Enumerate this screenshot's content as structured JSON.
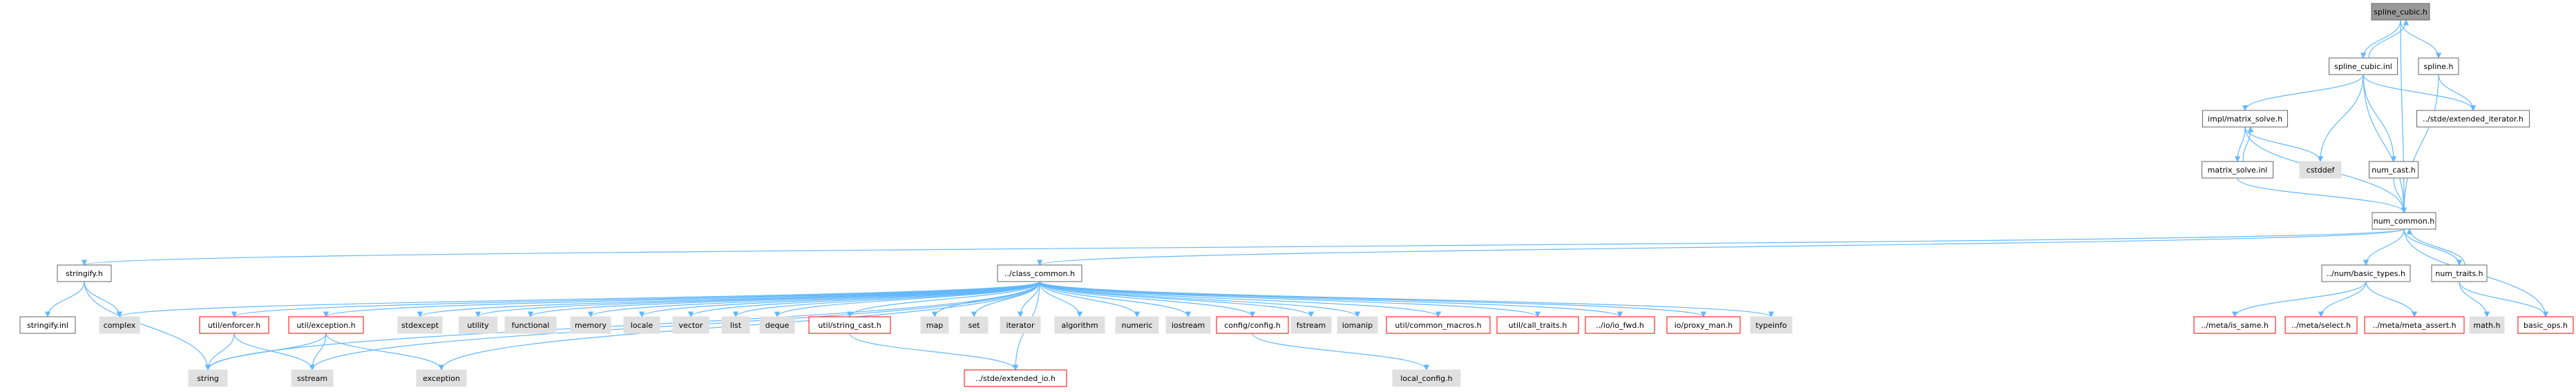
{
  "diagram": {
    "type": "include-dependency-graph",
    "colors": {
      "edge": "#63B8FF",
      "node_border": "#666666",
      "missing_border": "#FF0000",
      "external_fill": "#E0E0E0",
      "root_fill": "#999999",
      "node_fill": "#FFFFFF"
    },
    "nodes": [
      {
        "id": "spline_cubic_h",
        "label": "spline_cubic.h",
        "kind": "root"
      },
      {
        "id": "spline_cubic_inl",
        "label": "spline_cubic.inl",
        "kind": "normal"
      },
      {
        "id": "spline_h",
        "label": "spline.h",
        "kind": "normal"
      },
      {
        "id": "impl_matrix_solve_h",
        "label": "impl/matrix_solve.h",
        "kind": "normal"
      },
      {
        "id": "stde_extended_iterator_h",
        "label": "../stde/extended_iterator.h",
        "kind": "normal"
      },
      {
        "id": "cstddef",
        "label": "cstddef",
        "kind": "external"
      },
      {
        "id": "num_cast_h",
        "label": "num_cast.h",
        "kind": "normal"
      },
      {
        "id": "matrix_solve_inl",
        "label": "matrix_solve.inl",
        "kind": "normal"
      },
      {
        "id": "num_common_h",
        "label": "num_common.h",
        "kind": "normal"
      },
      {
        "id": "stringify_h",
        "label": "stringify.h",
        "kind": "normal"
      },
      {
        "id": "class_common_h",
        "label": "../class_common.h",
        "kind": "normal"
      },
      {
        "id": "num_basic_types_h",
        "label": "../num/basic_types.h",
        "kind": "normal"
      },
      {
        "id": "num_traits_h",
        "label": "num_traits.h",
        "kind": "normal"
      },
      {
        "id": "stringify_inl",
        "label": "stringify.inl",
        "kind": "normal"
      },
      {
        "id": "complex",
        "label": "complex",
        "kind": "external"
      },
      {
        "id": "util_enforcer_h",
        "label": "util/enforcer.h",
        "kind": "missing"
      },
      {
        "id": "util_exception_h",
        "label": "util/exception.h",
        "kind": "missing"
      },
      {
        "id": "stdexcept",
        "label": "stdexcept",
        "kind": "external"
      },
      {
        "id": "utility",
        "label": "utility",
        "kind": "external"
      },
      {
        "id": "functional",
        "label": "functional",
        "kind": "external"
      },
      {
        "id": "memory",
        "label": "memory",
        "kind": "external"
      },
      {
        "id": "locale",
        "label": "locale",
        "kind": "external"
      },
      {
        "id": "vector",
        "label": "vector",
        "kind": "external"
      },
      {
        "id": "list",
        "label": "list",
        "kind": "external"
      },
      {
        "id": "deque",
        "label": "deque",
        "kind": "external"
      },
      {
        "id": "util_string_cast_h",
        "label": "util/string_cast.h",
        "kind": "missing"
      },
      {
        "id": "map",
        "label": "map",
        "kind": "external"
      },
      {
        "id": "set",
        "label": "set",
        "kind": "external"
      },
      {
        "id": "iterator",
        "label": "iterator",
        "kind": "external"
      },
      {
        "id": "algorithm",
        "label": "algorithm",
        "kind": "external"
      },
      {
        "id": "numeric",
        "label": "numeric",
        "kind": "external"
      },
      {
        "id": "iostream",
        "label": "iostream",
        "kind": "external"
      },
      {
        "id": "config_config_h",
        "label": "config/config.h",
        "kind": "missing"
      },
      {
        "id": "fstream",
        "label": "fstream",
        "kind": "external"
      },
      {
        "id": "iomanip",
        "label": "iomanip",
        "kind": "external"
      },
      {
        "id": "util_common_macros_h",
        "label": "util/common_macros.h",
        "kind": "missing"
      },
      {
        "id": "util_call_traits_h",
        "label": "util/call_traits.h",
        "kind": "missing"
      },
      {
        "id": "io_io_fwd_h",
        "label": "../io/io_fwd.h",
        "kind": "missing"
      },
      {
        "id": "io_proxy_man_h",
        "label": "io/proxy_man.h",
        "kind": "missing"
      },
      {
        "id": "typeinfo",
        "label": "typeinfo",
        "kind": "external"
      },
      {
        "id": "meta_is_same_h",
        "label": "../meta/is_same.h",
        "kind": "missing"
      },
      {
        "id": "meta_select_h",
        "label": "../meta/select.h",
        "kind": "missing"
      },
      {
        "id": "meta_meta_assert_h",
        "label": "../meta/meta_assert.h",
        "kind": "missing"
      },
      {
        "id": "math_h",
        "label": "math.h",
        "kind": "external"
      },
      {
        "id": "basic_ops_h",
        "label": "basic_ops.h",
        "kind": "missing"
      },
      {
        "id": "string",
        "label": "string",
        "kind": "external"
      },
      {
        "id": "sstream",
        "label": "sstream",
        "kind": "external"
      },
      {
        "id": "exception",
        "label": "exception",
        "kind": "external"
      },
      {
        "id": "stde_extended_io_h",
        "label": "../stde/extended_io.h",
        "kind": "missing"
      },
      {
        "id": "local_config_h",
        "label": "local_config.h",
        "kind": "external"
      }
    ],
    "edges": [
      [
        "spline_cubic_h",
        "spline_cubic_inl"
      ],
      [
        "spline_cubic_inl",
        "spline_cubic_h"
      ],
      [
        "spline_cubic_h",
        "spline_h"
      ],
      [
        "spline_cubic_h",
        "num_common_h"
      ],
      [
        "spline_cubic_inl",
        "impl_matrix_solve_h"
      ],
      [
        "spline_cubic_inl",
        "stde_extended_iterator_h"
      ],
      [
        "spline_cubic_inl",
        "cstddef"
      ],
      [
        "spline_cubic_inl",
        "num_cast_h"
      ],
      [
        "spline_cubic_inl",
        "num_common_h"
      ],
      [
        "spline_h",
        "stde_extended_iterator_h"
      ],
      [
        "spline_h",
        "num_common_h"
      ],
      [
        "impl_matrix_solve_h",
        "matrix_solve_inl"
      ],
      [
        "matrix_solve_inl",
        "impl_matrix_solve_h"
      ],
      [
        "impl_matrix_solve_h",
        "cstddef"
      ],
      [
        "impl_matrix_solve_h",
        "num_common_h"
      ],
      [
        "matrix_solve_inl",
        "num_common_h"
      ],
      [
        "num_cast_h",
        "num_common_h"
      ],
      [
        "num_common_h",
        "stringify_h"
      ],
      [
        "num_common_h",
        "class_common_h"
      ],
      [
        "num_common_h",
        "num_basic_types_h"
      ],
      [
        "num_common_h",
        "num_traits_h"
      ],
      [
        "num_common_h",
        "basic_ops_h"
      ],
      [
        "num_traits_h",
        "num_common_h"
      ],
      [
        "stringify_h",
        "stringify_inl"
      ],
      [
        "stringify_h",
        "complex"
      ],
      [
        "stringify_h",
        "string"
      ],
      [
        "class_common_h",
        "complex"
      ],
      [
        "class_common_h",
        "util_enforcer_h"
      ],
      [
        "class_common_h",
        "util_exception_h"
      ],
      [
        "class_common_h",
        "stdexcept"
      ],
      [
        "class_common_h",
        "utility"
      ],
      [
        "class_common_h",
        "functional"
      ],
      [
        "class_common_h",
        "memory"
      ],
      [
        "class_common_h",
        "locale"
      ],
      [
        "class_common_h",
        "vector"
      ],
      [
        "class_common_h",
        "list"
      ],
      [
        "class_common_h",
        "deque"
      ],
      [
        "class_common_h",
        "util_string_cast_h"
      ],
      [
        "class_common_h",
        "map"
      ],
      [
        "class_common_h",
        "set"
      ],
      [
        "class_common_h",
        "iterator"
      ],
      [
        "class_common_h",
        "algorithm"
      ],
      [
        "class_common_h",
        "numeric"
      ],
      [
        "class_common_h",
        "iostream"
      ],
      [
        "class_common_h",
        "config_config_h"
      ],
      [
        "class_common_h",
        "fstream"
      ],
      [
        "class_common_h",
        "iomanip"
      ],
      [
        "class_common_h",
        "util_common_macros_h"
      ],
      [
        "class_common_h",
        "util_call_traits_h"
      ],
      [
        "class_common_h",
        "io_io_fwd_h"
      ],
      [
        "class_common_h",
        "io_proxy_man_h"
      ],
      [
        "class_common_h",
        "typeinfo"
      ],
      [
        "class_common_h",
        "string"
      ],
      [
        "class_common_h",
        "sstream"
      ],
      [
        "class_common_h",
        "exception"
      ],
      [
        "class_common_h",
        "stde_extended_io_h"
      ],
      [
        "util_enforcer_h",
        "string"
      ],
      [
        "util_enforcer_h",
        "sstream"
      ],
      [
        "util_exception_h",
        "string"
      ],
      [
        "util_exception_h",
        "sstream"
      ],
      [
        "util_exception_h",
        "exception"
      ],
      [
        "util_string_cast_h",
        "stde_extended_io_h"
      ],
      [
        "config_config_h",
        "local_config_h"
      ],
      [
        "num_basic_types_h",
        "meta_is_same_h"
      ],
      [
        "num_basic_types_h",
        "meta_select_h"
      ],
      [
        "num_basic_types_h",
        "meta_meta_assert_h"
      ],
      [
        "num_traits_h",
        "math_h"
      ],
      [
        "num_traits_h",
        "basic_ops_h"
      ]
    ]
  }
}
